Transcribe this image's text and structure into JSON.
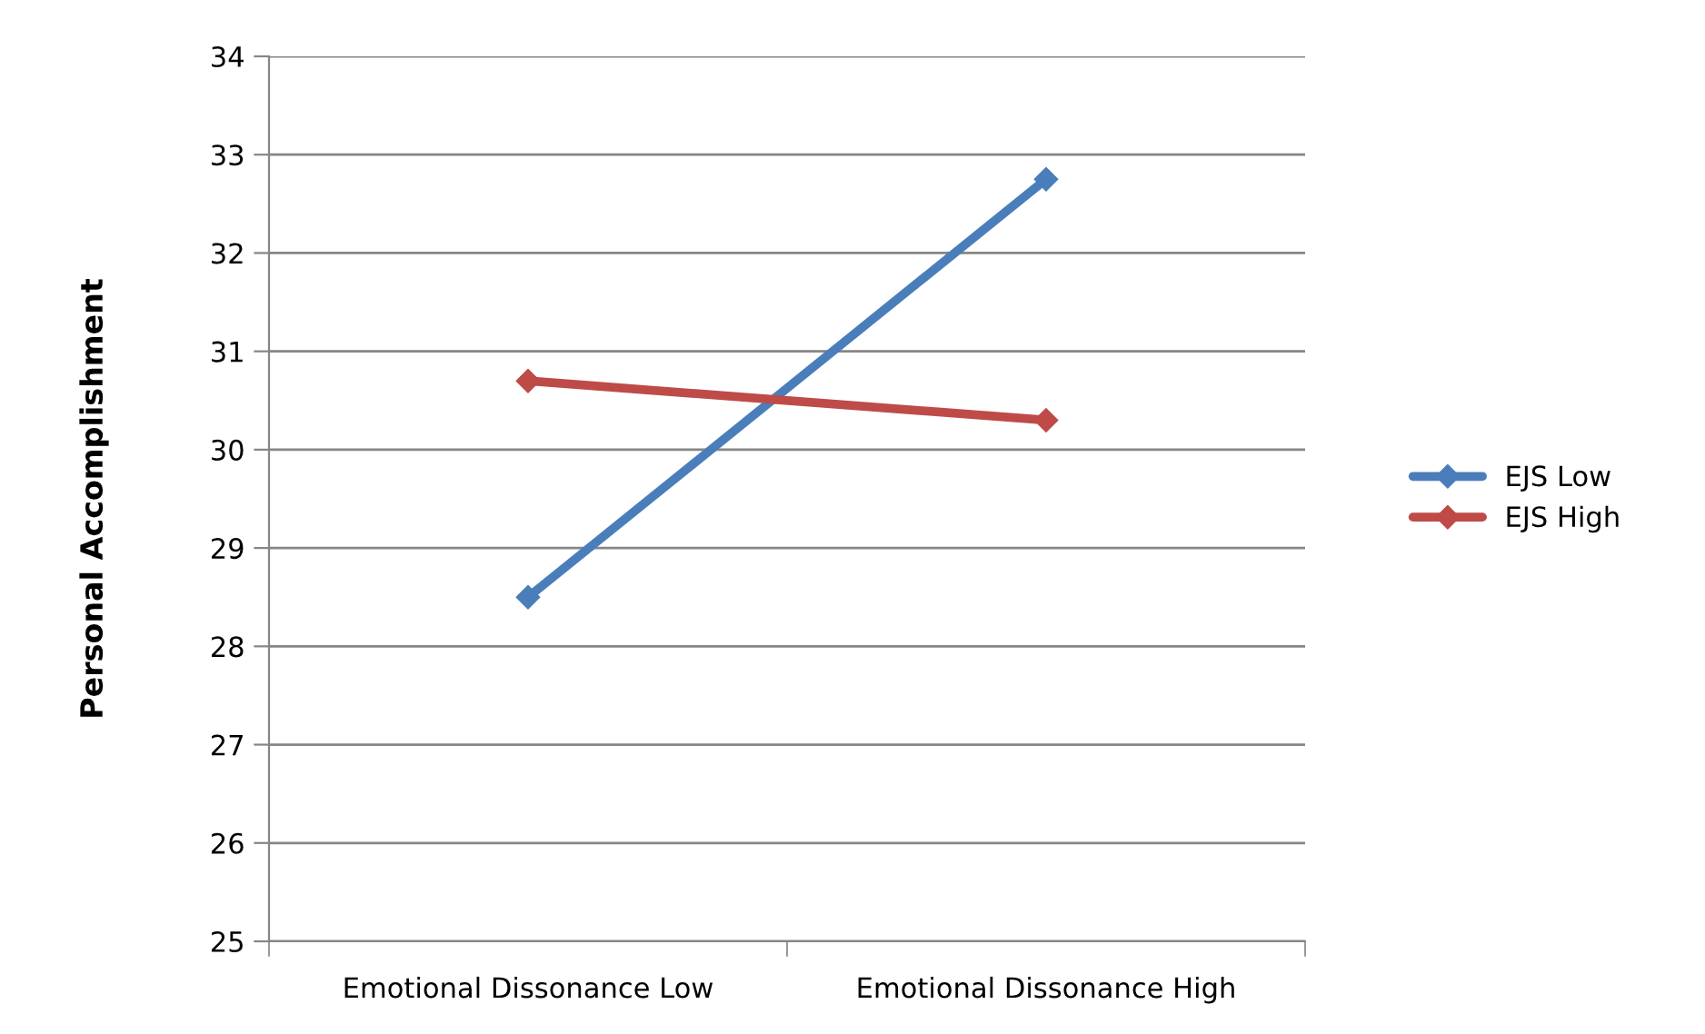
{
  "chart_data": {
    "type": "line",
    "ylabel": "Personal Accomplishment",
    "categories": [
      "Emotional Dissonance Low",
      "Emotional Dissonance High"
    ],
    "series": [
      {
        "name": "EJS Low",
        "color": "#4a7ebb",
        "values": [
          28.5,
          32.75
        ]
      },
      {
        "name": "EJS High",
        "color": "#be4b48",
        "values": [
          30.7,
          30.3
        ]
      }
    ],
    "ylim": [
      25,
      34
    ],
    "yticks": [
      25,
      26,
      27,
      28,
      29,
      30,
      31,
      32,
      33,
      34
    ],
    "grid": "y",
    "legend": "right",
    "marker": "diamond",
    "line_style": "solid"
  }
}
